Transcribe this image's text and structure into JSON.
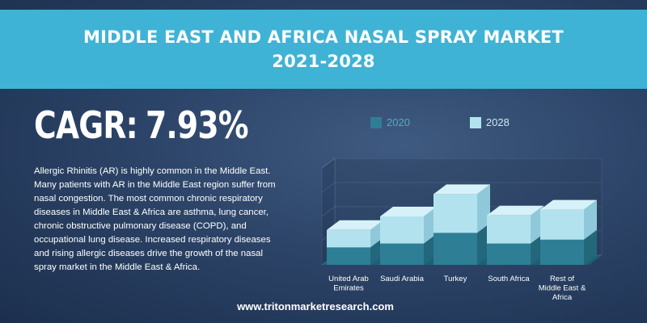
{
  "banner": {
    "title_line1": "MIDDLE EAST AND AFRICA NASAL SPRAY MARKET",
    "title_line2": "2021-2028"
  },
  "cagr": {
    "label": "CAGR:",
    "value": "7.93%"
  },
  "description": "Allergic Rhinitis (AR) is highly common in the Middle East. Many patients with AR in the Middle East region suffer from nasal congestion. The most common chronic respiratory diseases in Middle East & Africa are asthma, lung cancer, chronic obstructive pulmonary disease (COPD), and occupational lung disease. Increased respiratory diseases and rising allergic diseases drive the growth of the nasal spray market in the Middle East & Africa.",
  "footer": "www.tritonmarketresearch.com",
  "colors": {
    "banner": "#3fb3d5",
    "series_2020": "#2e7e95",
    "series_2028": "#b3e2ef"
  },
  "chart_data": {
    "type": "bar",
    "style": "3d-stacked",
    "categories": [
      "United Arab Emirates",
      "Saudi Arabia",
      "Turkey",
      "South Africa",
      "Rest of Middle East & Africa"
    ],
    "category_lines": [
      [
        "United Arab",
        "Emirates"
      ],
      [
        "Saudi Arabia"
      ],
      [
        "Turkey"
      ],
      [
        "South Africa"
      ],
      [
        "Rest of",
        "Middle East &",
        "Africa"
      ]
    ],
    "series": [
      {
        "name": "2020",
        "values": [
          18,
          22,
          33,
          22,
          26
        ]
      },
      {
        "name": "2028",
        "values": [
          36,
          50,
          73,
          51,
          57
        ]
      }
    ],
    "ylim": [
      0,
      100
    ],
    "legend": "top",
    "grid": true
  }
}
